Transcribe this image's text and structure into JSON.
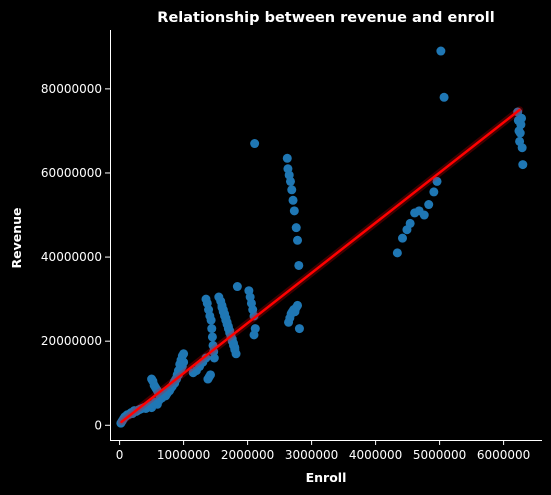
{
  "chart_data": {
    "type": "scatter",
    "title": "Relationship between revenue and enroll",
    "xlabel": "Enroll",
    "ylabel": "Revenue",
    "xlim": [
      -150000,
      6600000
    ],
    "ylim": [
      -3500000,
      94000000
    ],
    "xticks": [
      0,
      1000000,
      2000000,
      3000000,
      4000000,
      5000000,
      6000000
    ],
    "xtick_labels": [
      "0",
      "1000000",
      "2000000",
      "3000000",
      "4000000",
      "5000000",
      "6000000"
    ],
    "yticks": [
      0,
      20000000,
      40000000,
      60000000,
      80000000
    ],
    "ytick_labels": [
      "0",
      "20000000",
      "40000000",
      "60000000",
      "80000000"
    ],
    "grid": false,
    "colors": {
      "points": "#1f77b4",
      "regression": "#ff0000",
      "background": "#000000",
      "text": "#ffffff"
    },
    "regression_line": {
      "x": [
        30000,
        6250000
      ],
      "y": [
        800000,
        75000000
      ]
    },
    "points": {
      "x": [
        20000,
        40000,
        60000,
        80000,
        100000,
        120000,
        150000,
        180000,
        200000,
        230000,
        260000,
        290000,
        320000,
        350000,
        380000,
        410000,
        440000,
        470000,
        500000,
        530000,
        560000,
        590000,
        620000,
        650000,
        680000,
        710000,
        740000,
        770000,
        800000,
        830000,
        860000,
        890000,
        920000,
        950000,
        980000,
        1000000,
        500000,
        520000,
        540000,
        560000,
        580000,
        600000,
        620000,
        640000,
        660000,
        680000,
        700000,
        720000,
        740000,
        760000,
        780000,
        800000,
        820000,
        840000,
        860000,
        880000,
        900000,
        920000,
        940000,
        960000,
        980000,
        1000000,
        1150000,
        1200000,
        1250000,
        1300000,
        1350000,
        1380000,
        1400000,
        1420000,
        1350000,
        1370000,
        1390000,
        1410000,
        1430000,
        1440000,
        1450000,
        1460000,
        1470000,
        1480000,
        1550000,
        1580000,
        1600000,
        1620000,
        1640000,
        1660000,
        1680000,
        1700000,
        1720000,
        1740000,
        1760000,
        1780000,
        1800000,
        1600000,
        1620000,
        1640000,
        1660000,
        1680000,
        1700000,
        1720000,
        1740000,
        1760000,
        1780000,
        1800000,
        1820000,
        1840000,
        2020000,
        2040000,
        2060000,
        2080000,
        2100000,
        2120000,
        2100000,
        2110000,
        2620000,
        2630000,
        2650000,
        2670000,
        2690000,
        2710000,
        2730000,
        2760000,
        2780000,
        2810000,
        2640000,
        2660000,
        2680000,
        2700000,
        2720000,
        2740000,
        2760000,
        2780000,
        2800000,
        4340000,
        4420000,
        4490000,
        4540000,
        4610000,
        4680000,
        4760000,
        4830000,
        4910000,
        4960000,
        5020000,
        5070000,
        6220000,
        6230000,
        6240000,
        6250000,
        6260000,
        6270000,
        6280000,
        6290000,
        6300000
      ],
      "y": [
        500000,
        1000000,
        1500000,
        2000000,
        2200000,
        2500000,
        2600000,
        3000000,
        2800000,
        3500000,
        3300000,
        3600000,
        3800000,
        4000000,
        4200000,
        4000000,
        4500000,
        4700000,
        4200000,
        5000000,
        5500000,
        5000000,
        6000000,
        6500000,
        7000000,
        7500000,
        8000000,
        8500000,
        9000000,
        9500000,
        10000000,
        11000000,
        12000000,
        13000000,
        14000000,
        15000000,
        11000000,
        10500000,
        9500000,
        9000000,
        8500000,
        8000000,
        7500000,
        7000000,
        6500000,
        6800000,
        7200000,
        7000000,
        7500000,
        8000000,
        8200000,
        8800000,
        9200000,
        9800000,
        10500000,
        11000000,
        12000000,
        13000000,
        14500000,
        15500000,
        16500000,
        17000000,
        12500000,
        13000000,
        14000000,
        15000000,
        16000000,
        11000000,
        11500000,
        12000000,
        30000000,
        29000000,
        27500000,
        26000000,
        25000000,
        23000000,
        21000000,
        19000000,
        17500000,
        16000000,
        30500000,
        29500000,
        28500000,
        27500000,
        26500000,
        25500000,
        24500000,
        23500000,
        22500000,
        21500000,
        20500000,
        19500000,
        18500000,
        28000000,
        27000000,
        26000000,
        25000000,
        24000000,
        23000000,
        22000000,
        21000000,
        20000000,
        19000000,
        18000000,
        17000000,
        33000000,
        32000000,
        30500000,
        29000000,
        27500000,
        26000000,
        23000000,
        21500000,
        67000000,
        63500000,
        61000000,
        59500000,
        58000000,
        56000000,
        53500000,
        51000000,
        47000000,
        44000000,
        23000000,
        24500000,
        25500000,
        26500000,
        27000000,
        27500000,
        27000000,
        28000000,
        28500000,
        38000000,
        41000000,
        44500000,
        46500000,
        48000000,
        50500000,
        51000000,
        50000000,
        52500000,
        55500000,
        58000000,
        89000000,
        78000000,
        74500000,
        72500000,
        70000000,
        67500000,
        69500000,
        71500000,
        73000000,
        66000000,
        62000000
      ]
    }
  }
}
